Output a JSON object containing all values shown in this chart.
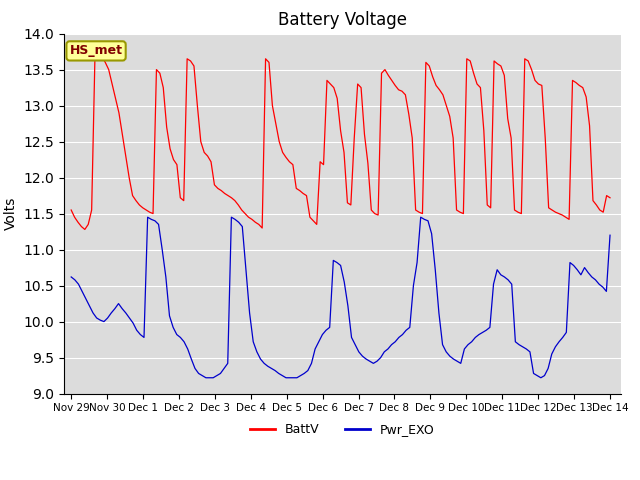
{
  "title": "Battery Voltage",
  "ylabel": "Volts",
  "ylim": [
    9.0,
    14.0
  ],
  "yticks": [
    9.0,
    9.5,
    10.0,
    10.5,
    11.0,
    11.5,
    12.0,
    12.5,
    13.0,
    13.5,
    14.0
  ],
  "xtick_labels": [
    "Nov 29",
    "Nov 30",
    "Dec 1",
    "Dec 2",
    "Dec 3",
    "Dec 4",
    "Dec 5",
    "Dec 6",
    "Dec 7",
    "Dec 8",
    "Dec 9",
    "Dec 10",
    "Dec 11",
    "Dec 12",
    "Dec 13",
    "Dec 14"
  ],
  "bg_color": "#dcdcdc",
  "line_red_color": "#ff0000",
  "line_blue_color": "#0000cc",
  "legend_station": "HS_met",
  "legend_entries": [
    "BattV",
    "Pwr_EXO"
  ],
  "legend_colors": [
    "#ff0000",
    "#0000cc"
  ],
  "figsize": [
    6.4,
    4.8
  ],
  "dpi": 100,
  "batt_v": [
    11.55,
    11.45,
    11.38,
    11.32,
    11.28,
    11.35,
    11.55,
    13.75,
    13.72,
    13.68,
    13.6,
    13.5,
    13.3,
    13.1,
    12.9,
    12.6,
    12.3,
    12.0,
    11.75,
    11.68,
    11.62,
    11.58,
    11.55,
    11.52,
    11.5,
    13.5,
    13.45,
    13.25,
    12.7,
    12.4,
    12.25,
    12.18,
    11.72,
    11.68,
    13.65,
    13.62,
    13.55,
    13.0,
    12.5,
    12.35,
    12.3,
    12.22,
    11.9,
    11.85,
    11.82,
    11.78,
    11.75,
    11.72,
    11.68,
    11.62,
    11.55,
    11.5,
    11.45,
    11.42,
    11.38,
    11.35,
    11.3,
    13.65,
    13.6,
    13.0,
    12.75,
    12.5,
    12.35,
    12.28,
    12.22,
    12.18,
    11.85,
    11.82,
    11.78,
    11.75,
    11.45,
    11.4,
    11.35,
    12.22,
    12.18,
    13.35,
    13.3,
    13.25,
    13.1,
    12.65,
    12.35,
    11.65,
    11.62,
    12.55,
    13.3,
    13.25,
    12.6,
    12.2,
    11.55,
    11.5,
    11.48,
    13.45,
    13.5,
    13.42,
    13.35,
    13.28,
    13.22,
    13.2,
    13.15,
    12.88,
    12.55,
    11.55,
    11.52,
    11.5,
    13.6,
    13.55,
    13.4,
    13.28,
    13.22,
    13.15,
    13.0,
    12.85,
    12.55,
    11.55,
    11.52,
    11.5,
    13.65,
    13.62,
    13.45,
    13.3,
    13.25,
    12.65,
    11.62,
    11.58,
    13.62,
    13.58,
    13.55,
    13.42,
    12.82,
    12.55,
    11.55,
    11.52,
    11.5,
    13.65,
    13.62,
    13.5,
    13.35,
    13.3,
    13.28,
    12.55,
    11.58,
    11.55,
    11.52,
    11.5,
    11.48,
    11.45,
    11.42,
    13.35,
    13.32,
    13.28,
    13.25,
    13.12,
    12.72,
    11.68,
    11.62,
    11.55,
    11.52,
    11.75,
    11.72
  ],
  "pwr_exo": [
    10.62,
    10.58,
    10.52,
    10.42,
    10.32,
    10.22,
    10.12,
    10.05,
    10.02,
    10.0,
    10.05,
    10.12,
    10.18,
    10.25,
    10.18,
    10.12,
    10.05,
    9.98,
    9.88,
    9.82,
    9.78,
    11.45,
    11.42,
    11.4,
    11.35,
    11.0,
    10.62,
    10.08,
    9.92,
    9.82,
    9.78,
    9.72,
    9.62,
    9.48,
    9.35,
    9.28,
    9.25,
    9.22,
    9.22,
    9.22,
    9.25,
    9.28,
    9.35,
    9.42,
    11.45,
    11.42,
    11.38,
    11.32,
    10.72,
    10.12,
    9.72,
    9.58,
    9.48,
    9.42,
    9.38,
    9.35,
    9.32,
    9.28,
    9.25,
    9.22,
    9.22,
    9.22,
    9.22,
    9.25,
    9.28,
    9.32,
    9.42,
    9.62,
    9.72,
    9.82,
    9.88,
    9.92,
    10.85,
    10.82,
    10.78,
    10.55,
    10.22,
    9.78,
    9.68,
    9.58,
    9.52,
    9.48,
    9.45,
    9.42,
    9.45,
    9.5,
    9.58,
    9.62,
    9.68,
    9.72,
    9.78,
    9.82,
    9.88,
    9.92,
    10.5,
    10.82,
    11.45,
    11.42,
    11.4,
    11.22,
    10.72,
    10.12,
    9.68,
    9.58,
    9.52,
    9.48,
    9.45,
    9.42,
    9.62,
    9.68,
    9.72,
    9.78,
    9.82,
    9.85,
    9.88,
    9.92,
    10.52,
    10.72,
    10.65,
    10.62,
    10.58,
    10.52,
    9.72,
    9.68,
    9.65,
    9.62,
    9.58,
    9.28,
    9.25,
    9.22,
    9.25,
    9.35,
    9.55,
    9.65,
    9.72,
    9.78,
    9.85,
    10.82,
    10.78,
    10.72,
    10.65,
    10.75,
    10.68,
    10.62,
    10.58,
    10.52,
    10.48,
    10.42,
    11.2
  ]
}
